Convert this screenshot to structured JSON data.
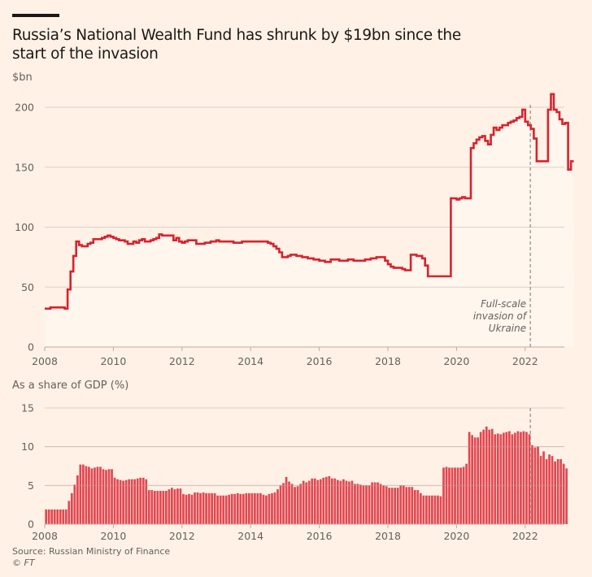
{
  "header": {
    "title": "Russia’s National Wealth Fund has shrunk by $19bn since the start of the invasion"
  },
  "footer": {
    "source": "Source: Russian Ministry of Finance",
    "copyright": "© FT"
  },
  "colors": {
    "background": "#fff1e5",
    "plot_fill": "#fff6ee",
    "line": "#d7232f",
    "bar": "#e03a45",
    "grid": "#d9d1ca",
    "text_muted": "#66605c",
    "text_dark": "#1a1817"
  },
  "chart_data": [
    {
      "type": "line",
      "style": "step",
      "title": "Russia’s National Wealth Fund has shrunk by $19bn since the start of the invasion",
      "ylabel": "$bn",
      "xlabel": "",
      "start": "2008-01",
      "frequency": "monthly",
      "ylim": [
        0,
        210
      ],
      "yticks": [
        0,
        50,
        100,
        150,
        200
      ],
      "xlim": [
        2008,
        2023.2
      ],
      "xticks": [
        2008,
        2010,
        2012,
        2014,
        2016,
        2018,
        2020,
        2022
      ],
      "xtick_labels": [
        "2008",
        "2010",
        "2012",
        "2014",
        "2016",
        "2018",
        "2020",
        "2022"
      ],
      "grid": true,
      "annotation": {
        "x": 2022.15,
        "lines": [
          "Full-scale",
          "invasion of",
          "Ukraine"
        ]
      },
      "series": [
        {
          "name": "National Wealth Fund ($bn)",
          "values": [
            32,
            32,
            33,
            33,
            33,
            33,
            33,
            32,
            48,
            63,
            76,
            88,
            85,
            84,
            84,
            86,
            87,
            90,
            90,
            90,
            91,
            92,
            93,
            92,
            91,
            90,
            89,
            89,
            88,
            86,
            86,
            88,
            87,
            89,
            90,
            88,
            88,
            89,
            90,
            91,
            94,
            93,
            93,
            93,
            93,
            89,
            91,
            88,
            87,
            88,
            89,
            89,
            89,
            86,
            86,
            86,
            87,
            87,
            88,
            88,
            89,
            88,
            88,
            88,
            88,
            88,
            87,
            87,
            87,
            88,
            88,
            88,
            88,
            88,
            88,
            88,
            88,
            88,
            87,
            86,
            84,
            82,
            79,
            75,
            75,
            76,
            77,
            77,
            76,
            76,
            75,
            75,
            74,
            74,
            73,
            73,
            72,
            72,
            71,
            71,
            73,
            73,
            73,
            72,
            72,
            72,
            73,
            73,
            72,
            72,
            72,
            72,
            73,
            73,
            74,
            74,
            75,
            75,
            75,
            72,
            69,
            67,
            66,
            66,
            66,
            65,
            64,
            64,
            77,
            77,
            76,
            76,
            74,
            68,
            59,
            59,
            59,
            59,
            59,
            59,
            59,
            59,
            124,
            124,
            123,
            124,
            125,
            124,
            124,
            166,
            170,
            173,
            175,
            176,
            172,
            169,
            177,
            183,
            181,
            183,
            185,
            185,
            187,
            188,
            189,
            191,
            192,
            198,
            188,
            185,
            182,
            174,
            155,
            155,
            155,
            155,
            198,
            211,
            198,
            196,
            190,
            186,
            187,
            148,
            155
          ]
        }
      ]
    },
    {
      "type": "bar",
      "title": "As a share of GDP (%)",
      "ylabel": "%",
      "xlabel": "",
      "start": "2008-01",
      "frequency": "monthly",
      "ylim": [
        0,
        15
      ],
      "yticks": [
        0,
        5,
        10,
        15
      ],
      "xlim": [
        2008,
        2023.2
      ],
      "xticks": [
        2008,
        2010,
        2012,
        2014,
        2016,
        2018,
        2020,
        2022
      ],
      "xtick_labels": [
        "2008",
        "2010",
        "2012",
        "2014",
        "2016",
        "2018",
        "2020",
        "2022"
      ],
      "grid": true,
      "annotation_x": 2022.15,
      "series": [
        {
          "name": "Share of GDP (%)",
          "values": [
            1.9,
            1.9,
            1.9,
            1.9,
            1.9,
            1.9,
            1.9,
            1.9,
            3.0,
            4.0,
            5.1,
            6.3,
            7.7,
            7.7,
            7.5,
            7.4,
            7.2,
            7.3,
            7.4,
            7.4,
            7.1,
            7.0,
            7.1,
            7.1,
            6.0,
            5.8,
            5.7,
            5.6,
            5.7,
            5.8,
            5.8,
            5.8,
            5.9,
            6.0,
            6.0,
            5.8,
            4.4,
            4.4,
            4.3,
            4.3,
            4.3,
            4.3,
            4.3,
            4.5,
            4.7,
            4.5,
            4.6,
            4.6,
            3.9,
            3.8,
            3.9,
            3.8,
            4.1,
            4.1,
            4.0,
            4.1,
            4.0,
            4.0,
            4.0,
            4.0,
            3.7,
            3.7,
            3.7,
            3.7,
            3.8,
            3.9,
            3.9,
            4.0,
            3.9,
            3.9,
            4.0,
            4.0,
            4.0,
            4.0,
            4.0,
            4.0,
            3.8,
            3.7,
            3.9,
            4.0,
            4.1,
            4.5,
            5.0,
            5.3,
            6.1,
            5.5,
            5.2,
            4.8,
            4.9,
            5.2,
            5.6,
            5.4,
            5.6,
            5.9,
            5.9,
            5.7,
            5.8,
            6.0,
            6.1,
            6.2,
            5.9,
            5.9,
            5.7,
            5.6,
            5.8,
            5.6,
            5.5,
            5.6,
            5.2,
            5.2,
            5.1,
            5.0,
            5.0,
            5.0,
            5.4,
            5.4,
            5.4,
            5.2,
            5.0,
            4.9,
            4.7,
            4.7,
            4.7,
            4.7,
            5.0,
            5.0,
            4.8,
            4.8,
            4.8,
            4.4,
            4.4,
            4.0,
            3.7,
            3.7,
            3.7,
            3.7,
            3.7,
            3.7,
            3.6,
            7.3,
            7.4,
            7.3,
            7.3,
            7.3,
            7.3,
            7.3,
            7.4,
            7.8,
            11.9,
            11.5,
            11.2,
            11.2,
            11.9,
            12.2,
            12.6,
            12.2,
            12.3,
            11.6,
            11.7,
            11.6,
            11.8,
            11.9,
            12.0,
            11.6,
            11.8,
            12.0,
            11.9,
            12.0,
            11.9,
            11.6,
            10.2,
            9.9,
            10.0,
            8.8,
            9.4,
            8.4,
            9.0,
            8.8,
            8.1,
            8.4,
            8.4,
            7.8,
            7.2
          ]
        }
      ]
    }
  ]
}
